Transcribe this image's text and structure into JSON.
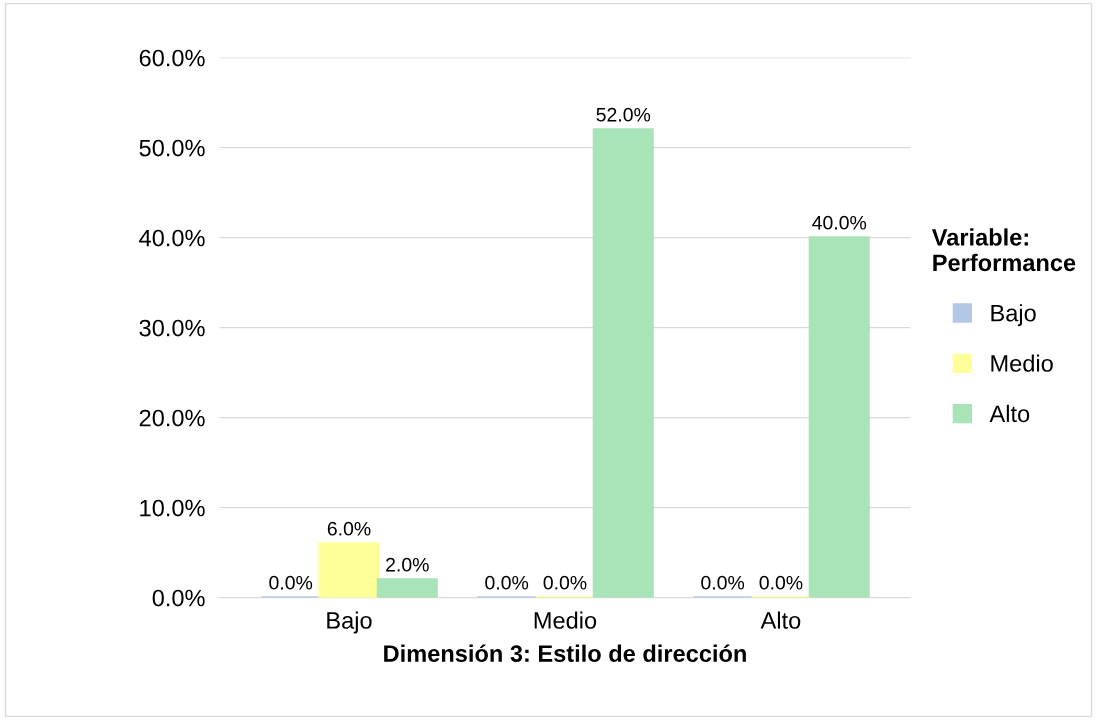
{
  "chart_data": {
    "type": "bar",
    "xlabel": "Dimensión 3: Estilo de dirección",
    "legend_title": "Variable:\nPerformance",
    "categories": [
      "Bajo",
      "Medio",
      "Alto"
    ],
    "series": [
      {
        "name": "Bajo",
        "color": "#b4c7e7",
        "values": [
          0.0,
          0.0,
          0.0
        ],
        "value_labels": [
          "0.0%",
          "0.0%",
          "0.0%"
        ]
      },
      {
        "name": "Medio",
        "color": "#ffff99",
        "values": [
          6.0,
          0.0,
          0.0
        ],
        "value_labels": [
          "6.0%",
          "0.0%",
          "0.0%"
        ]
      },
      {
        "name": "Alto",
        "color": "#a9e4b8",
        "values": [
          2.0,
          52.0,
          40.0
        ],
        "value_labels": [
          "2.0%",
          "52.0%",
          "40.0%"
        ]
      }
    ],
    "ylim": [
      0,
      60
    ],
    "yticks": [
      {
        "value": 0,
        "label": "0.0%"
      },
      {
        "value": 10,
        "label": "10.0%"
      },
      {
        "value": 20,
        "label": "20.0%"
      },
      {
        "value": 30,
        "label": "30.0%"
      },
      {
        "value": 40,
        "label": "40.0%"
      },
      {
        "value": 50,
        "label": "50.0%"
      },
      {
        "value": 60,
        "label": "60.0%"
      }
    ],
    "grid": "y",
    "legend": "right"
  }
}
